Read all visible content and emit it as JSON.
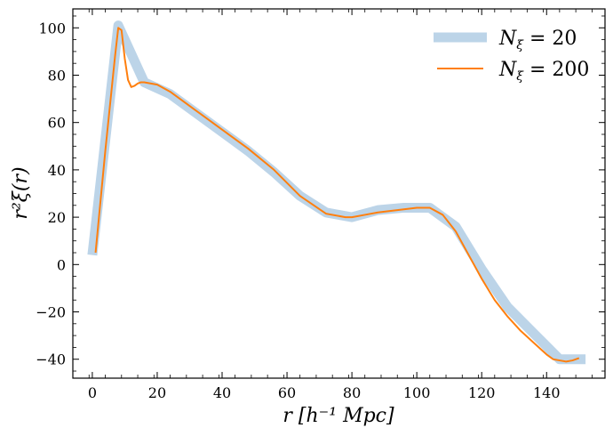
{
  "chart_data": {
    "type": "line",
    "title": "",
    "xlabel": "r [h⁻¹ Mpc]",
    "ylabel": "r²ξ(r)",
    "xlim": [
      -6,
      158
    ],
    "ylim": [
      -48,
      108
    ],
    "xticks": [
      0,
      20,
      40,
      60,
      80,
      100,
      120,
      140
    ],
    "yticks": [
      -40,
      -20,
      0,
      20,
      40,
      60,
      80,
      100
    ],
    "xtick_labels": [
      "0",
      "20",
      "40",
      "60",
      "80",
      "100",
      "120",
      "140"
    ],
    "ytick_labels": [
      "−40",
      "−20",
      "0",
      "20",
      "40",
      "60",
      "80",
      "100"
    ],
    "legend_position": "top-right",
    "series": [
      {
        "name": "Nξ = 20",
        "color": "#bcd4e8",
        "x": [
          0,
          8,
          16,
          24,
          32,
          40,
          48,
          56,
          64,
          72,
          80,
          88,
          96,
          104,
          112,
          120,
          128,
          136,
          144,
          152
        ],
        "y": [
          4,
          101,
          77,
          72,
          64,
          56,
          48,
          39,
          29,
          22,
          20,
          23,
          24,
          24,
          16,
          -2,
          -18,
          -29,
          -40,
          -40
        ]
      },
      {
        "name": "Nξ = 200",
        "color": "#ff7f0e",
        "x": [
          1,
          4,
          7,
          8,
          9,
          10,
          11,
          12,
          13,
          14,
          15,
          16,
          20,
          24,
          32,
          40,
          48,
          56,
          64,
          72,
          78,
          80,
          84,
          88,
          94,
          100,
          104,
          108,
          112,
          116,
          120,
          124,
          128,
          132,
          136,
          140,
          142,
          144,
          146,
          148,
          150
        ],
        "y": [
          5,
          48,
          88,
          100,
          99,
          87,
          78,
          75,
          75.5,
          76.5,
          77,
          77,
          76,
          73,
          65,
          57,
          49,
          40,
          29,
          21.5,
          20,
          20,
          21,
          22,
          23,
          24,
          24,
          21,
          14,
          4,
          -6,
          -15,
          -22,
          -28,
          -33,
          -38,
          -40,
          -40.5,
          -41,
          -40.5,
          -39.5
        ]
      }
    ],
    "legend": [
      {
        "label_main": "N",
        "label_sub": "ξ",
        "label_rest": " = 20"
      },
      {
        "label_main": "N",
        "label_sub": "ξ",
        "label_rest": " = 200"
      }
    ]
  }
}
